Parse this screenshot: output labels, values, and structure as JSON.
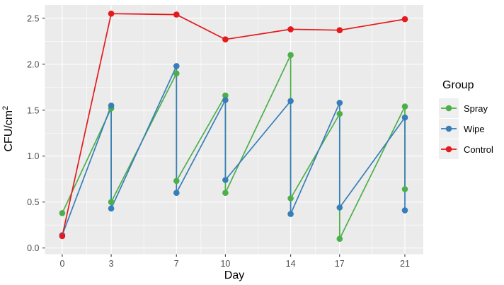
{
  "chart_data": {
    "type": "line",
    "title": "",
    "xlabel": "Day",
    "ylabel": "CFU/cm^2",
    "ylabel_base": "CFU/cm",
    "ylabel_sup": "2",
    "x_ticks": [
      0,
      3,
      7,
      10,
      14,
      17,
      21
    ],
    "y_ticks": [
      "0.0",
      "0.5",
      "1.0",
      "1.5",
      "2.0",
      "2.5"
    ],
    "xlim": [
      -1.06,
      22.13
    ],
    "ylim": [
      -0.068,
      2.645
    ],
    "grid": {
      "major": true,
      "minor": true,
      "color": "#FFFFFF"
    },
    "legend": {
      "title": "Group",
      "position": "right",
      "entries": [
        {
          "label": "Spray",
          "color": "#4DAF4A"
        },
        {
          "label": "Wipe",
          "color": "#377EB8"
        },
        {
          "label": "Control",
          "color": "#E41A1C"
        }
      ]
    },
    "series": [
      {
        "name": "Spray",
        "color": "#4DAF4A",
        "points": [
          [
            0,
            0.38
          ],
          [
            3,
            1.52
          ],
          [
            3,
            0.5
          ],
          [
            7,
            1.9
          ],
          [
            7,
            0.73
          ],
          [
            10,
            1.66
          ],
          [
            10,
            0.6
          ],
          [
            14,
            2.1
          ],
          [
            14,
            0.54
          ],
          [
            17,
            1.46
          ],
          [
            17,
            0.1
          ],
          [
            21,
            1.54
          ],
          [
            21,
            0.64
          ]
        ]
      },
      {
        "name": "Wipe",
        "color": "#377EB8",
        "points": [
          [
            0,
            0.14
          ],
          [
            3,
            1.55
          ],
          [
            3,
            0.43
          ],
          [
            7,
            1.98
          ],
          [
            7,
            0.6
          ],
          [
            10,
            1.61
          ],
          [
            10,
            0.74
          ],
          [
            14,
            1.6
          ],
          [
            14,
            0.37
          ],
          [
            17,
            1.58
          ],
          [
            17,
            0.44
          ],
          [
            21,
            1.42
          ],
          [
            21,
            0.41
          ]
        ]
      },
      {
        "name": "Control",
        "color": "#E41A1C",
        "points": [
          [
            0,
            0.13
          ],
          [
            3,
            2.55
          ],
          [
            7,
            2.54
          ],
          [
            10,
            2.27
          ],
          [
            14,
            2.38
          ],
          [
            17,
            2.37
          ],
          [
            21,
            2.49
          ]
        ]
      }
    ],
    "style": {
      "panel_bg": "#EBEBEB",
      "grid_color": "#FFFFFF",
      "tick_text_color": "#4D4D4D",
      "tick_mark_color": "#333333",
      "legend_key_bg": "#EFEFEF"
    }
  }
}
